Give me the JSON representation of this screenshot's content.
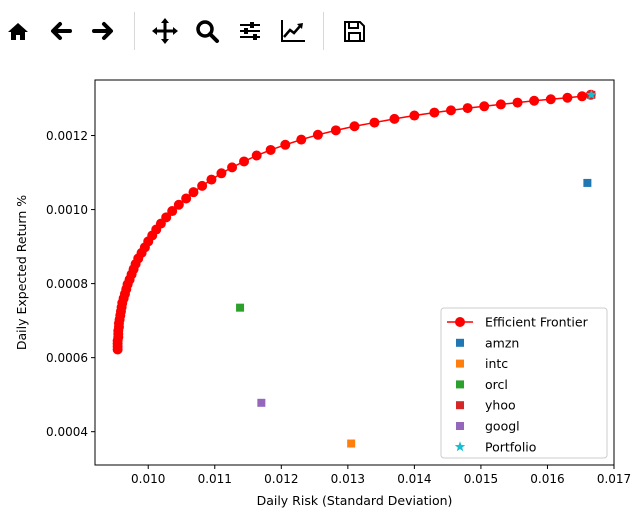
{
  "toolbar": {
    "buttons": [
      {
        "name": "home",
        "icon": "home-icon"
      },
      {
        "name": "back",
        "icon": "arrow-left-icon"
      },
      {
        "name": "forward",
        "icon": "arrow-right-icon"
      },
      {
        "name": "pan",
        "icon": "move-icon"
      },
      {
        "name": "zoom",
        "icon": "magnifier-icon"
      },
      {
        "name": "subplots",
        "icon": "sliders-icon"
      },
      {
        "name": "customize",
        "icon": "chart-edit-icon"
      },
      {
        "name": "save",
        "icon": "floppy-disk-icon"
      }
    ]
  },
  "chart_data": {
    "type": "scatter",
    "xlabel": "Daily Risk (Standard Deviation)",
    "ylabel": "Daily Expected Return %",
    "xlim": [
      0.0092,
      0.017
    ],
    "ylim": [
      0.00031,
      0.00135
    ],
    "xticks": [
      "0.010",
      "0.011",
      "0.012",
      "0.013",
      "0.014",
      "0.015",
      "0.016",
      "0.017"
    ],
    "yticks": [
      "0.0004",
      "0.0006",
      "0.0008",
      "0.0010",
      "0.0012"
    ],
    "grid": false,
    "legend_position": "lower-right",
    "colors": {
      "frontier": "#ff0000",
      "amzn": "#1f77b4",
      "intc": "#ff7f0e",
      "orcl": "#2ca02c",
      "yhoo": "#d62728",
      "googl": "#9467bd",
      "portfolio": "#17becf"
    },
    "frontier": {
      "name": "Efficient Frontier",
      "x": [
        0.00954,
        0.00954,
        0.00954,
        0.00954,
        0.00955,
        0.00955,
        0.00955,
        0.00956,
        0.00956,
        0.00957,
        0.00958,
        0.00959,
        0.0096,
        0.00961,
        0.00963,
        0.00965,
        0.00967,
        0.00969,
        0.00972,
        0.00975,
        0.00978,
        0.00981,
        0.00985,
        0.0099,
        0.00995,
        0.01,
        0.01006,
        0.01012,
        0.01019,
        0.01027,
        0.01036,
        0.01046,
        0.01057,
        0.01068,
        0.01081,
        0.01095,
        0.0111,
        0.01126,
        0.01144,
        0.01163,
        0.01184,
        0.01206,
        0.0123,
        0.01255,
        0.01282,
        0.0131,
        0.0134,
        0.0137,
        0.014,
        0.0143,
        0.01455,
        0.0148,
        0.01505,
        0.0153,
        0.01555,
        0.0158,
        0.01605,
        0.0163,
        0.01652,
        0.01665
      ],
      "y": [
        0.000622,
        0.00063,
        0.000638,
        0.000646,
        0.000655,
        0.000664,
        0.000673,
        0.000683,
        0.000693,
        0.000703,
        0.000714,
        0.000725,
        0.000736,
        0.000748,
        0.00076,
        0.000772,
        0.000785,
        0.000798,
        0.000811,
        0.000825,
        0.000839,
        0.000853,
        0.000868,
        0.000883,
        0.000898,
        0.000914,
        0.00093,
        0.000946,
        0.000962,
        0.000979,
        0.000996,
        0.001013,
        0.00103,
        0.001047,
        0.001064,
        0.001081,
        0.001098,
        0.001114,
        0.00113,
        0.001146,
        0.001161,
        0.001175,
        0.001189,
        0.001202,
        0.001214,
        0.001225,
        0.001235,
        0.001245,
        0.001254,
        0.001262,
        0.001268,
        0.001274,
        0.001279,
        0.001284,
        0.001289,
        0.001294,
        0.001298,
        0.001302,
        0.001306,
        0.00131
      ]
    },
    "assets": [
      {
        "name": "amzn",
        "x": 0.0166,
        "y": 0.001072,
        "marker": "square"
      },
      {
        "name": "intc",
        "x": 0.01305,
        "y": 0.000368,
        "marker": "square"
      },
      {
        "name": "orcl",
        "x": 0.01138,
        "y": 0.000735,
        "marker": "square"
      },
      {
        "name": "yhoo",
        "x": 0.01666,
        "y": 0.00131,
        "marker": "square"
      },
      {
        "name": "googl",
        "x": 0.0117,
        "y": 0.000478,
        "marker": "square"
      },
      {
        "name": "Portfolio",
        "x": 0.01666,
        "y": 0.00131,
        "marker": "star"
      }
    ],
    "legend": [
      "Efficient Frontier",
      "amzn",
      "intc",
      "orcl",
      "yhoo",
      "googl",
      "Portfolio"
    ]
  }
}
